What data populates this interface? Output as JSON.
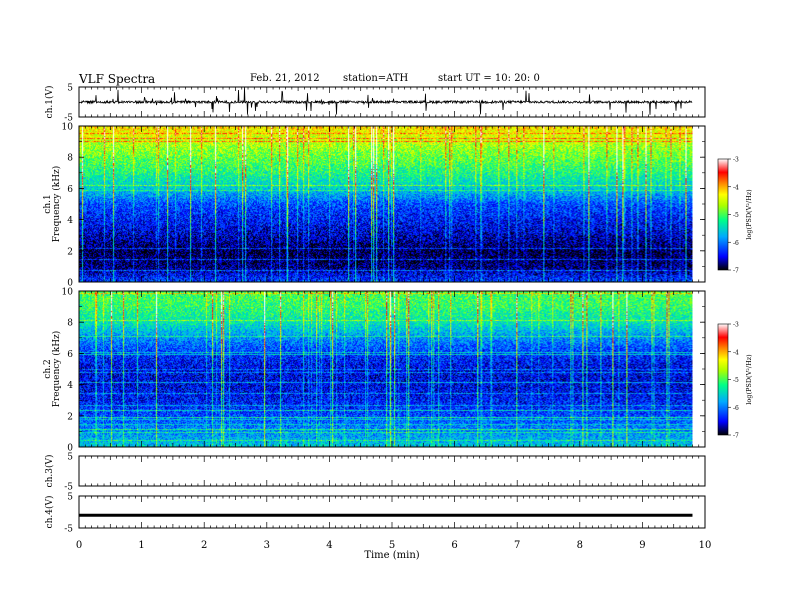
{
  "header": {
    "title": "VLF  Spectra",
    "date": "Feb. 21, 2012",
    "station": "station=ATH",
    "start": "start  UT  =   10: 20: 0"
  },
  "chart_data": [
    {
      "type": "line",
      "id": "ch1-waveform",
      "ylabel": "ch.1(V)",
      "ylim": [
        -5,
        5
      ],
      "yticks": [
        "5",
        "-5"
      ],
      "description_values": {
        "baseline_v": 0.0,
        "typical_spike_v": 3.0,
        "max_spike_v": 5.0
      }
    },
    {
      "type": "heatmap",
      "id": "ch1-spectrogram",
      "ylabel_channel": "ch.1",
      "ylabel": "Frequency  (kHz)",
      "ylim": [
        0,
        10
      ],
      "yticks": [
        "0",
        "2",
        "4",
        "6",
        "8",
        "10"
      ],
      "zlabel": "log(PSD(V²/Hz)",
      "zlim": [
        -7,
        -3
      ],
      "zticks": [
        "-3",
        "-4",
        "-5",
        "-6",
        "-7"
      ],
      "bands_khz_logpsd": [
        [
          0.0,
          -6.2
        ],
        [
          1.0,
          -6.8
        ],
        [
          2.0,
          -6.9
        ],
        [
          3.0,
          -6.6
        ],
        [
          4.0,
          -6.4
        ],
        [
          5.0,
          -6.2
        ],
        [
          6.0,
          -5.6
        ],
        [
          7.0,
          -5.2
        ],
        [
          8.0,
          -4.9
        ],
        [
          9.0,
          -4.6
        ],
        [
          10.0,
          -4.2
        ]
      ]
    },
    {
      "type": "heatmap",
      "id": "ch2-spectrogram",
      "ylabel_channel": "ch.2",
      "ylabel": "Frequency  (kHz)",
      "ylim": [
        0,
        10
      ],
      "yticks": [
        "0",
        "2",
        "4",
        "6",
        "8",
        "10"
      ],
      "zlabel": "log(PSD(V²/Hz)",
      "zlim": [
        -7,
        -3
      ],
      "zticks": [
        "-3",
        "-4",
        "-5",
        "-6",
        "-7"
      ],
      "bands_khz_logpsd": [
        [
          0.0,
          -5.6
        ],
        [
          1.0,
          -5.9
        ],
        [
          2.0,
          -6.2
        ],
        [
          3.0,
          -6.4
        ],
        [
          4.0,
          -6.5
        ],
        [
          5.0,
          -6.5
        ],
        [
          6.0,
          -6.3
        ],
        [
          7.0,
          -5.9
        ],
        [
          8.0,
          -5.4
        ],
        [
          9.0,
          -5.1
        ],
        [
          10.0,
          -5.0
        ]
      ]
    },
    {
      "type": "line",
      "id": "ch3-waveform",
      "ylabel": "ch.3(V)",
      "ylim": [
        -5,
        5
      ],
      "yticks": [
        "5",
        "-5"
      ]
    },
    {
      "type": "line",
      "id": "ch4-waveform",
      "ylabel": "ch.4(V)",
      "ylim": [
        -5,
        5
      ],
      "yticks": [
        "5",
        "-5"
      ],
      "description_values": {
        "constant_v": -1.0
      }
    }
  ],
  "xaxis": {
    "xlabel": "Time  (min)",
    "xlim": [
      0,
      10
    ],
    "xticks": [
      "0",
      "1",
      "2",
      "3",
      "4",
      "5",
      "6",
      "7",
      "8",
      "9",
      "10"
    ],
    "data_end_min": 9.8
  },
  "colors": {
    "colormap": [
      "#000000",
      "#0000ff",
      "#00aaff",
      "#00ff88",
      "#aaff00",
      "#ffff00",
      "#ff8800",
      "#ff0000",
      "#ffffff"
    ]
  }
}
